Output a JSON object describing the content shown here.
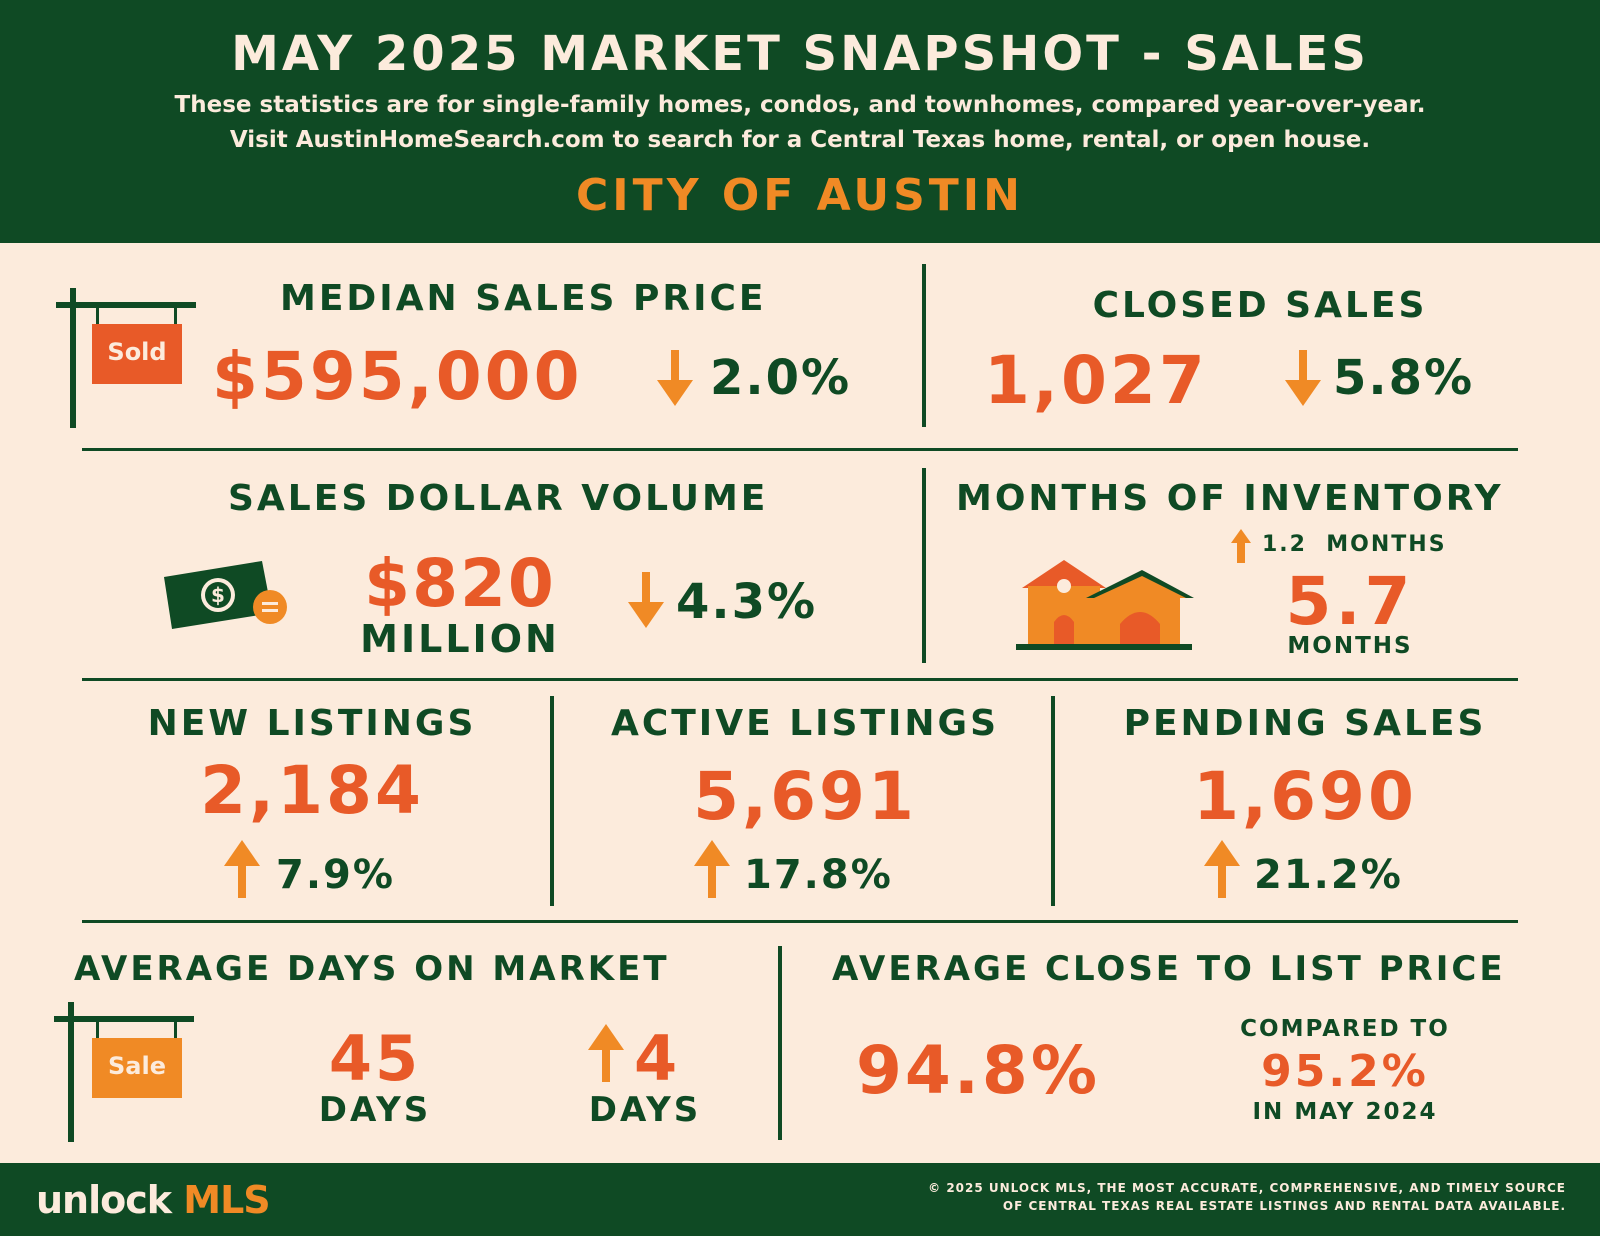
{
  "header": {
    "title": "MAY 2025 MARKET SNAPSHOT - SALES",
    "subtitle_line1": "These statistics are for single-family homes, condos, and townhomes, compared year-over-year.",
    "subtitle_line2": "Visit AustinHomeSearch.com to search for a Central Texas home, rental, or open house.",
    "area": "CITY OF AUSTIN"
  },
  "median_sales_price": {
    "label": "MEDIAN SALES PRICE",
    "sign_text": "Sold",
    "value": "$595,000",
    "direction": "down",
    "change": "2.0%"
  },
  "closed_sales": {
    "label": "CLOSED SALES",
    "value": "1,027",
    "direction": "down",
    "change": "5.8%"
  },
  "sales_dollar_volume": {
    "label": "SALES DOLLAR VOLUME",
    "value": "$820",
    "unit": "MILLION",
    "direction": "down",
    "change": "4.3%"
  },
  "months_of_inventory": {
    "label": "MONTHS OF INVENTORY",
    "direction": "up",
    "change": "1.2  MONTHS",
    "value": "5.7",
    "unit": "MONTHS"
  },
  "new_listings": {
    "label": "NEW LISTINGS",
    "value": "2,184",
    "direction": "up",
    "change": "7.9%"
  },
  "active_listings": {
    "label": "ACTIVE LISTINGS",
    "value": "5,691",
    "direction": "up",
    "change": "17.8%"
  },
  "pending_sales": {
    "label": "PENDING SALES",
    "value": "1,690",
    "direction": "up",
    "change": "21.2%"
  },
  "average_days_on_market": {
    "label": "AVERAGE DAYS ON MARKET",
    "sign_text": "Sale",
    "value": "45",
    "unit": "DAYS",
    "direction": "up",
    "change": "4",
    "change_unit": "DAYS"
  },
  "average_close_to_list": {
    "label": "AVERAGE CLOSE TO LIST PRICE",
    "value": "94.8%",
    "compare_label": "COMPARED TO",
    "compare_value": "95.2%",
    "compare_period": "IN MAY 2024"
  },
  "footer": {
    "logo_unlock": "unlock",
    "logo_mls": "MLS",
    "copyright_line1": "© 2025 UNLOCK MLS, THE MOST ACCURATE, COMPREHENSIVE, AND TIMELY SOURCE",
    "copyright_line2": "OF CENTRAL TEXAS REAL ESTATE LISTINGS AND RENTAL DATA AVAILABLE."
  },
  "colors": {
    "dark_green": "#0f4a24",
    "cream": "#fcebdc",
    "orange": "#f08a25",
    "red_orange": "#e85a28"
  },
  "icons": [
    "sold-sign-icon",
    "down-arrow-icon",
    "up-arrow-icon",
    "dollar-bill-icon",
    "house-icon",
    "sale-sign-icon"
  ]
}
